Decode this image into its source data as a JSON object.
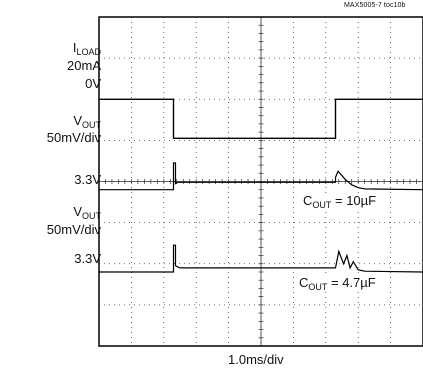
{
  "chart_data": {
    "type": "line",
    "note": "MAX5005-7 toc10b",
    "xlabel": "1.0ms/div",
    "x_divisions": 10,
    "y_divisions": 8,
    "grid": true,
    "channels": [
      {
        "name_main": "I",
        "name_sub": "LOAD",
        "scale": "20mA",
        "ref": "0V",
        "ref_division": 2.0
      },
      {
        "name_main": "V",
        "name_sub": "OUT",
        "scale": "50mV/div",
        "ref": "3.3V",
        "ref_division": 4.2,
        "annotation_main": "C",
        "annotation_sub": "OUT",
        "annotation_value": " = 10µF"
      },
      {
        "name_main": "V",
        "name_sub": "OUT",
        "scale": "50mV/div",
        "ref": "3.3V",
        "ref_division": 6.2,
        "annotation_main": "C",
        "annotation_sub": "OUT",
        "annotation_value": " = 4.7µF"
      }
    ],
    "series": [
      {
        "x": [
          0,
          2.3,
          2.3,
          7.3,
          7.3,
          10
        ],
        "y": [
          2.0,
          2.0,
          2.95,
          2.95,
          2.0,
          2.0
        ]
      },
      {
        "x": [
          0,
          2.3,
          2.3,
          2.36,
          2.36,
          2.42,
          7.3,
          7.3,
          7.38,
          7.6,
          7.8,
          8.0,
          8.2,
          10
        ],
        "y": [
          4.2,
          4.2,
          3.55,
          3.55,
          4.05,
          4.02,
          4.02,
          3.9,
          3.75,
          3.95,
          4.08,
          4.15,
          4.18,
          4.2
        ]
      },
      {
        "x": [
          0,
          2.3,
          2.3,
          2.36,
          2.36,
          2.5,
          7.3,
          7.4,
          7.55,
          7.65,
          7.75,
          7.85,
          8.0,
          8.2,
          10
        ],
        "y": [
          6.2,
          6.2,
          5.55,
          5.55,
          6.05,
          6.1,
          6.1,
          5.7,
          6.0,
          5.8,
          6.1,
          5.95,
          6.15,
          6.18,
          6.2
        ]
      }
    ]
  }
}
